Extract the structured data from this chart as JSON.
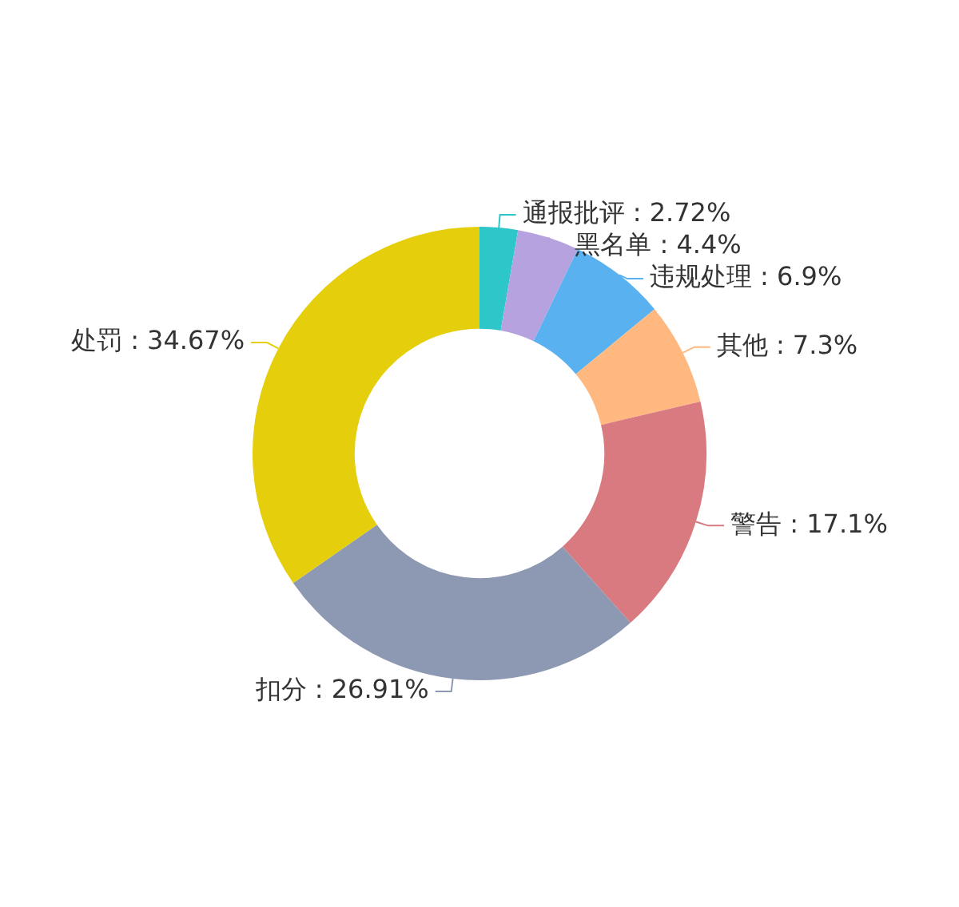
{
  "chart_data": {
    "type": "donut",
    "categories": [
      "通报批评",
      "黑名单",
      "违规处理",
      "其他",
      "警告",
      "扣分",
      "处罚"
    ],
    "values": [
      2.72,
      4.4,
      6.9,
      7.3,
      17.1,
      26.91,
      34.67
    ],
    "colors": [
      "#2ec7c9",
      "#b6a2de",
      "#5ab1ef",
      "#ffb980",
      "#d87a80",
      "#8d98b3",
      "#e5cf0d"
    ],
    "value_labels": [
      ": 2.72%",
      ": 4.4%",
      ": 6.9%",
      ": 7.3%",
      ": 17.1%",
      ": 26.91%",
      ": 34.67%"
    ],
    "legend": false
  }
}
